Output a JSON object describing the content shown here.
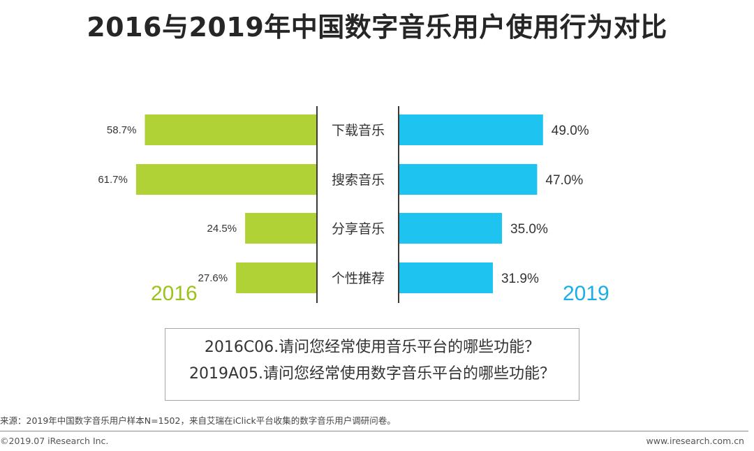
{
  "title": "2016与2019年中国数字音乐用户使用行为对比",
  "chart_data": {
    "type": "bar",
    "orientation": "butterfly-horizontal",
    "categories": [
      "下载音乐",
      "搜索音乐",
      "分享音乐",
      "个性推荐"
    ],
    "series": [
      {
        "name": "2016",
        "values": [
          58.7,
          61.7,
          24.5,
          27.6
        ],
        "labels": [
          "58.7%",
          "61.7%",
          "24.5%",
          "27.6%"
        ],
        "color": "#b0d236",
        "label_color": "#9cc21c"
      },
      {
        "name": "2019",
        "values": [
          49.0,
          47.0,
          35.0,
          31.9
        ],
        "labels": [
          "49.0%",
          "47.0%",
          "35.0%",
          "31.9%"
        ],
        "color": "#1fc3ef",
        "label_color": "#1aaee8"
      }
    ],
    "xlim": [
      0,
      70
    ]
  },
  "questions": [
    "2016C06.请问您经常使用音乐平台的哪些功能？",
    "2019A05.请问您经常使用数字音乐平台的哪些功能？"
  ],
  "source": "来源：2019年中国数字音乐用户样本N=1502，来自艾瑞在iClick平台收集的数字音乐用户调研问卷。",
  "copyright": "©2019.07 iResearch Inc.",
  "website": "www.iresearch.com.cn"
}
